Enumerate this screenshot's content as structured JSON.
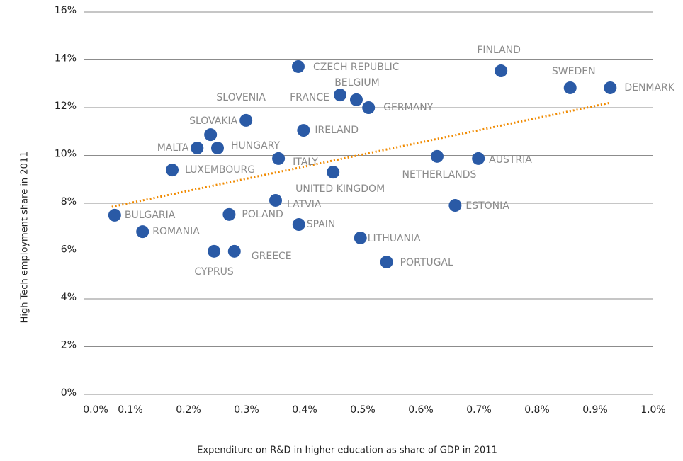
{
  "chart_data": {
    "type": "scatter",
    "x_label": "Expenditure on R&D in higher education as share of GDP in 2011",
    "y_label": "High Tech employment share in 2011",
    "color": "#2a5aa6",
    "labels": [
      "BULGARIA",
      "ROMANIA",
      "LUXEMBOURG",
      "MALTA",
      "SLOVAKIA",
      "HUNGARY",
      "CYPRUS",
      "GREECE",
      "POLAND",
      "SLOVENIA",
      "LATVIA",
      "ITALY",
      "CZECH REPUBLIC",
      "SPAIN",
      "IRELAND",
      "UNITED KINGDOM",
      "FRANCE",
      "BELGIUM",
      "GERMANY",
      "LITHUANIA",
      "PORTUGAL",
      "NETHERLANDS",
      "ESTONIA",
      "AUSTRIA",
      "FINLAND",
      "SWEDEN",
      "DENMARK"
    ],
    "x": [
      0.073,
      0.121,
      0.172,
      0.215,
      0.238,
      0.25,
      0.244,
      0.279,
      0.27,
      0.299,
      0.35,
      0.355,
      0.389,
      0.39,
      0.398,
      0.449,
      0.461,
      0.489,
      0.51,
      0.496,
      0.541,
      0.628,
      0.659,
      0.699,
      0.738,
      0.857,
      0.926
    ],
    "y": [
      7.5,
      6.81,
      9.39,
      10.31,
      10.87,
      10.31,
      5.99,
      5.99,
      7.53,
      11.47,
      8.12,
      9.87,
      13.72,
      7.11,
      11.05,
      9.3,
      12.53,
      12.33,
      12.0,
      6.55,
      5.54,
      9.96,
      7.91,
      9.87,
      13.54,
      12.83,
      12.83
    ],
    "trend_line": {
      "color": "#f08a00",
      "x": [
        0.068,
        0.927
      ],
      "y": [
        7.85,
        12.21
      ]
    },
    "xlim": [
      0,
      1.0
    ],
    "ylim": [
      0,
      16
    ],
    "xticks": [
      {
        "value": 0,
        "label": "0.0%"
      },
      {
        "value": 0.1,
        "label": "0.1%"
      },
      {
        "value": 0.2,
        "label": "0.2%"
      },
      {
        "value": 0.3,
        "label": "0.3%"
      },
      {
        "value": 0.4,
        "label": "0.4%"
      },
      {
        "value": 0.5,
        "label": "0.5%"
      },
      {
        "value": 0.6,
        "label": "0.6%"
      },
      {
        "value": 0.7,
        "label": "0.7%"
      },
      {
        "value": 0.8,
        "label": "0.8%"
      },
      {
        "value": 0.9,
        "label": "0.9%"
      },
      {
        "value": 1.0,
        "label": "1.0%"
      }
    ],
    "yticks": [
      {
        "value": 0,
        "label": "0%"
      },
      {
        "value": 2,
        "label": "2%"
      },
      {
        "value": 4,
        "label": "4%"
      },
      {
        "value": 6,
        "label": "6%"
      },
      {
        "value": 8,
        "label": "8%"
      },
      {
        "value": 10,
        "label": "10%"
      },
      {
        "value": 12,
        "label": "12%"
      },
      {
        "value": 14,
        "label": "14%"
      },
      {
        "value": 16,
        "label": "16%"
      }
    ],
    "grid": true
  }
}
